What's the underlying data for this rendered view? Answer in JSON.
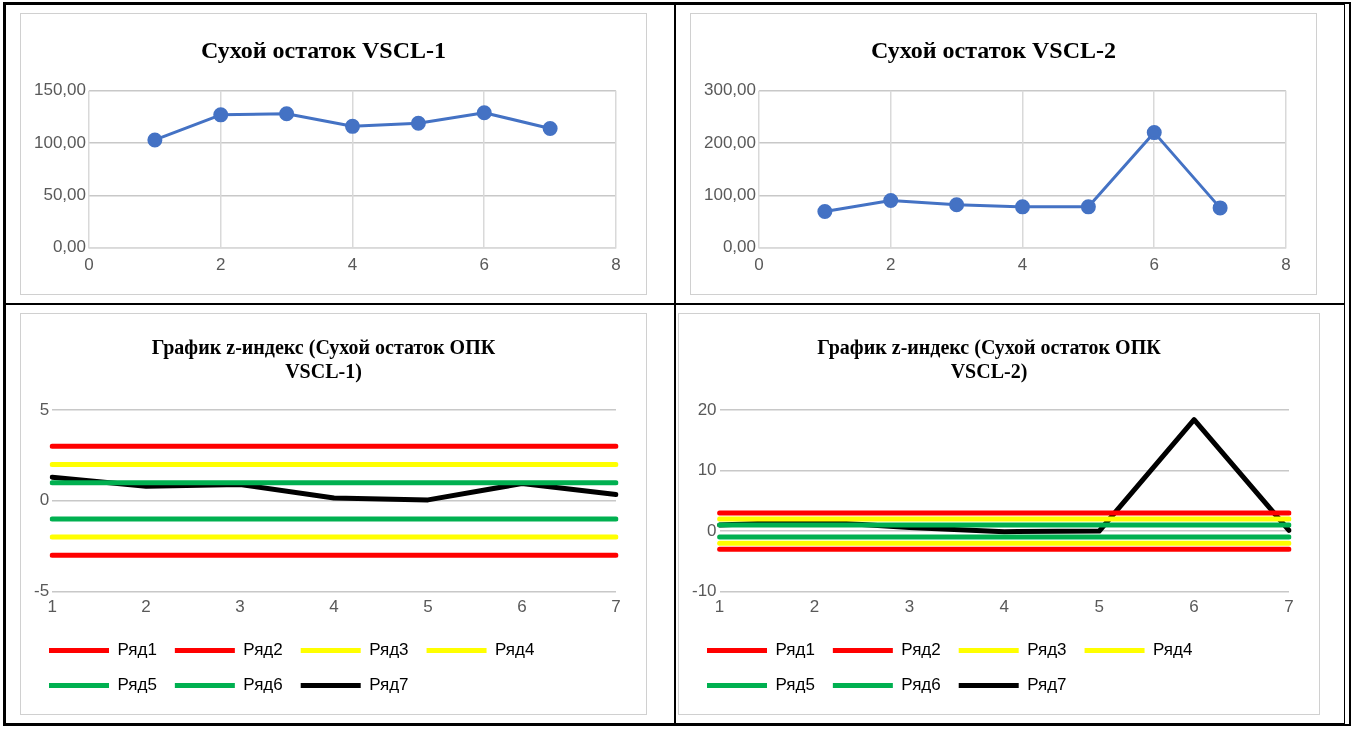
{
  "chart_data": [
    {
      "type": "line",
      "title": "Сухой остаток VSCL-1",
      "x": [
        1,
        2,
        3,
        4,
        5,
        6,
        7
      ],
      "series": [
        {
          "color": "#4472c4",
          "values": [
            103,
            127,
            128,
            116,
            119,
            129,
            114
          ]
        }
      ],
      "xlim": [
        0,
        8
      ],
      "xticks": [
        0,
        2,
        4,
        6,
        8
      ],
      "ylim": [
        0,
        150
      ],
      "yticks": [
        {
          "value": 0,
          "label": "0,00"
        },
        {
          "value": 50,
          "label": "50,00"
        },
        {
          "value": 100,
          "label": "100,00"
        },
        {
          "value": 150,
          "label": "150,00"
        }
      ],
      "grid": true,
      "marker": "circle",
      "legend": false
    },
    {
      "type": "line",
      "title": "Сухой остаток VSCL-2",
      "x": [
        1,
        2,
        3,
        4,
        5,
        6,
        7
      ],
      "series": [
        {
          "color": "#4472c4",
          "values": [
            69,
            90,
            82,
            78,
            78,
            220,
            76
          ]
        }
      ],
      "xlim": [
        0,
        8
      ],
      "xticks": [
        0,
        2,
        4,
        6,
        8
      ],
      "ylim": [
        0,
        300
      ],
      "yticks": [
        {
          "value": 0,
          "label": "0,00"
        },
        {
          "value": 100,
          "label": "100,00"
        },
        {
          "value": 200,
          "label": "200,00"
        },
        {
          "value": 300,
          "label": "300,00"
        }
      ],
      "grid": true,
      "marker": "circle",
      "legend": false
    },
    {
      "type": "line",
      "title": "График z-индекс (Сухой остаток ОПК VSCL-1)",
      "categories": [
        "1",
        "2",
        "3",
        "4",
        "5",
        "6",
        "7"
      ],
      "series": [
        {
          "name": "Ряд1",
          "color": "#ff0000",
          "values": [
            3,
            3,
            3,
            3,
            3,
            3,
            3
          ]
        },
        {
          "name": "Ряд2",
          "color": "#ff0000",
          "values": [
            -3,
            -3,
            -3,
            -3,
            -3,
            -3,
            -3
          ]
        },
        {
          "name": "Ряд3",
          "color": "#ffff00",
          "values": [
            2,
            2,
            2,
            2,
            2,
            2,
            2
          ]
        },
        {
          "name": "Ряд4",
          "color": "#ffff00",
          "values": [
            -2,
            -2,
            -2,
            -2,
            -2,
            -2,
            -2
          ]
        },
        {
          "name": "Ряд5",
          "color": "#00b050",
          "values": [
            1,
            1,
            1,
            1,
            1,
            1,
            1
          ]
        },
        {
          "name": "Ряд6",
          "color": "#00b050",
          "values": [
            -1,
            -1,
            -1,
            -1,
            -1,
            -1,
            -1
          ]
        },
        {
          "name": "Ряд7",
          "color": "#000000",
          "values": [
            1.3,
            0.8,
            0.9,
            0.15,
            0.05,
            0.95,
            0.35
          ]
        }
      ],
      "ylim": [
        -5,
        5
      ],
      "yticks": [
        -5,
        0,
        5
      ],
      "grid": "y",
      "marker": "none",
      "legend": "bottom"
    },
    {
      "type": "line",
      "title": "График z-индекс (Сухой остаток ОПК VSCL-2)",
      "categories": [
        "1",
        "2",
        "3",
        "4",
        "5",
        "6",
        "7"
      ],
      "series": [
        {
          "name": "Ряд1",
          "color": "#ff0000",
          "values": [
            3,
            3,
            3,
            3,
            3,
            3,
            3
          ]
        },
        {
          "name": "Ряд2",
          "color": "#ff0000",
          "values": [
            -3,
            -3,
            -3,
            -3,
            -3,
            -3,
            -3
          ]
        },
        {
          "name": "Ряд3",
          "color": "#ffff00",
          "values": [
            2,
            2,
            2,
            2,
            2,
            2,
            2
          ]
        },
        {
          "name": "Ряд4",
          "color": "#ffff00",
          "values": [
            -2,
            -2,
            -2,
            -2,
            -2,
            -2,
            -2
          ]
        },
        {
          "name": "Ряд5",
          "color": "#00b050",
          "values": [
            1,
            1,
            1,
            1,
            1,
            1,
            1
          ]
        },
        {
          "name": "Ряд6",
          "color": "#00b050",
          "values": [
            -1,
            -1,
            -1,
            -1,
            -1,
            -1,
            -1
          ]
        },
        {
          "name": "Ряд7",
          "color": "#000000",
          "values": [
            1.0,
            1.6,
            0.6,
            -0.1,
            0,
            18.4,
            0.1
          ]
        }
      ],
      "ylim": [
        -10,
        20
      ],
      "yticks": [
        -10,
        0,
        10,
        20
      ],
      "grid": "y",
      "marker": "none",
      "legend": "bottom"
    }
  ]
}
